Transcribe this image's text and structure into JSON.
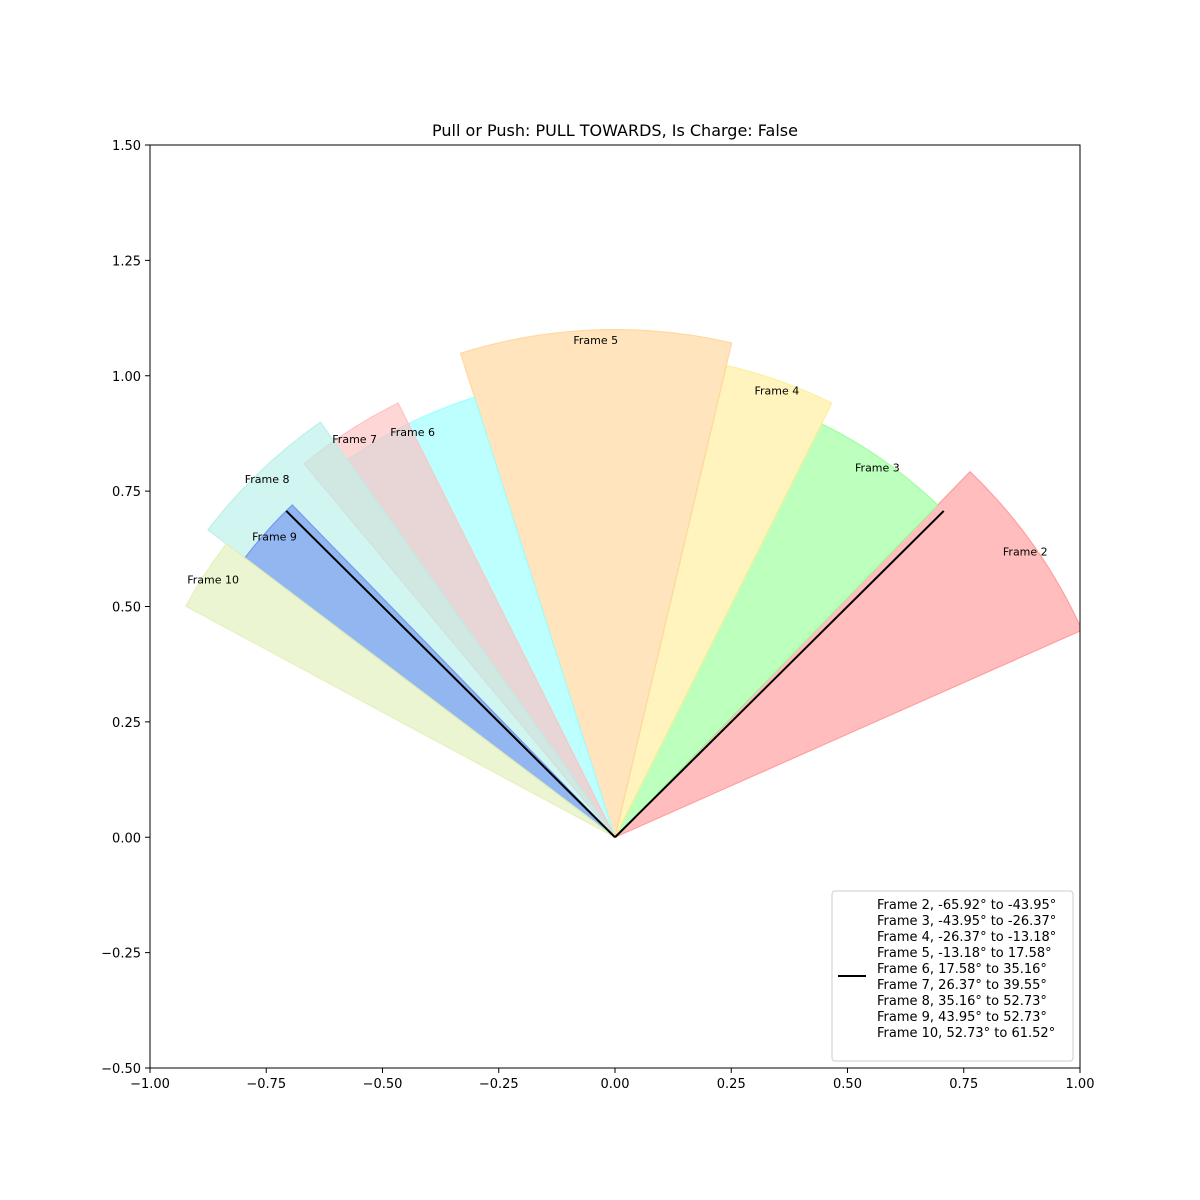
{
  "chart_data": {
    "type": "polar-sector",
    "title": "Pull or Push: PULL TOWARDS, Is Charge: False",
    "xlim": [
      -1.0,
      1.0
    ],
    "ylim": [
      -0.5,
      1.5
    ],
    "xticks": [
      "−1.00",
      "−0.75",
      "−0.50",
      "−0.25",
      "0.00",
      "0.25",
      "0.50",
      "0.75",
      "1.00"
    ],
    "xtick_values": [
      -1.0,
      -0.75,
      -0.5,
      -0.25,
      0.0,
      0.25,
      0.5,
      0.75,
      1.0
    ],
    "yticks": [
      "−0.50",
      "−0.25",
      "0.00",
      "0.25",
      "0.50",
      "0.75",
      "1.00",
      "1.25",
      "1.50"
    ],
    "ytick_values": [
      -0.5,
      -0.25,
      0.0,
      0.25,
      0.5,
      0.75,
      1.0,
      1.25,
      1.5
    ],
    "sectors": [
      {
        "label": "Frame 2",
        "start_deg": -65.92,
        "end_deg": -43.95,
        "radius": 1.1,
        "color": "#ff9999",
        "alpha": 0.65
      },
      {
        "label": "Frame 3",
        "start_deg": -43.95,
        "end_deg": -26.37,
        "radius": 1.0,
        "color": "#99ff99",
        "alpha": 0.65
      },
      {
        "label": "Frame 4",
        "start_deg": -26.37,
        "end_deg": -13.18,
        "radius": 1.05,
        "color": "#ffee99",
        "alpha": 0.65
      },
      {
        "label": "Frame 5",
        "start_deg": -13.18,
        "end_deg": 17.58,
        "radius": 1.1,
        "color": "#ffd699",
        "alpha": 0.65
      },
      {
        "label": "Frame 6",
        "start_deg": 17.58,
        "end_deg": 35.16,
        "radius": 1.0,
        "color": "#99ffff",
        "alpha": 0.65
      },
      {
        "label": "Frame 7",
        "start_deg": 26.37,
        "end_deg": 39.55,
        "radius": 1.05,
        "color": "#ffc0c0",
        "alpha": 0.65
      },
      {
        "label": "Frame 8",
        "start_deg": 35.16,
        "end_deg": 52.73,
        "radius": 1.1,
        "color": "#b8efe8",
        "alpha": 0.65
      },
      {
        "label": "Frame 9",
        "start_deg": 43.95,
        "end_deg": 52.73,
        "radius": 1.0,
        "color": "#6f94ef",
        "alpha": 0.65
      },
      {
        "label": "Frame 10",
        "start_deg": 52.73,
        "end_deg": 61.52,
        "radius": 1.05,
        "color": "#e2f0b8",
        "alpha": 0.65
      }
    ],
    "lines": [
      {
        "from": [
          0,
          0
        ],
        "to": [
          0.707,
          0.707
        ],
        "color": "#000000"
      },
      {
        "from": [
          0,
          0
        ],
        "to": [
          -0.707,
          0.707
        ],
        "color": "#000000"
      }
    ],
    "legend": {
      "placement": "lower-right",
      "entries": [
        "Frame 2, -65.92° to -43.95°",
        "Frame 3, -43.95° to -26.37°",
        "Frame 4, -26.37° to -13.18°",
        "Frame 5, -13.18° to 17.58°",
        "Frame 6, 17.58° to 35.16°",
        "Frame 7, 26.37° to 39.55°",
        "Frame 8, 35.16° to 52.73°",
        "Frame 9, 43.95° to 52.73°",
        "Frame 10, 52.73° to 61.52°"
      ]
    },
    "grid": false
  }
}
